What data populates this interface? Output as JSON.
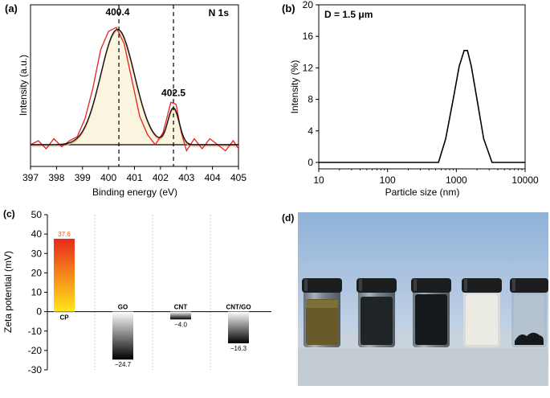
{
  "panels": {
    "a": {
      "label": "(a)"
    },
    "b": {
      "label": "(b)"
    },
    "c": {
      "label": "(c)"
    },
    "d": {
      "label": "(d)"
    }
  },
  "chart_data": [
    {
      "id": "xps",
      "type": "line",
      "title": "N 1s",
      "xlabel": "Binding energy (eV)",
      "ylabel": "Intensity (a.u.)",
      "xlim": [
        397,
        405
      ],
      "xticks": [
        397,
        398,
        399,
        400,
        401,
        402,
        403,
        404,
        405
      ],
      "ylim": [
        0,
        1
      ],
      "peaks": [
        {
          "label": "400.4",
          "center": 400.35,
          "height": 0.57,
          "width": 0.65
        },
        {
          "label": "402.5",
          "center": 402.5,
          "height": 0.18,
          "width": 0.22
        }
      ],
      "raw_series": {
        "name": "measured",
        "color": "#e8201e",
        "x": [
          397.0,
          397.3,
          397.6,
          397.9,
          398.2,
          398.5,
          398.8,
          399.1,
          399.4,
          399.7,
          400.0,
          400.3,
          400.6,
          400.9,
          401.2,
          401.5,
          401.8,
          402.1,
          402.4,
          402.6,
          402.8,
          403.0,
          403.3,
          403.6,
          403.9,
          404.2,
          404.5,
          404.8,
          405.0
        ],
        "y": [
          0.0,
          0.02,
          -0.02,
          0.03,
          -0.01,
          0.02,
          0.04,
          0.13,
          0.28,
          0.47,
          0.56,
          0.58,
          0.5,
          0.32,
          0.14,
          0.05,
          0.0,
          0.06,
          0.21,
          0.2,
          0.06,
          -0.03,
          0.03,
          -0.02,
          0.03,
          0.0,
          -0.03,
          0.02,
          -0.02
        ]
      },
      "fit_color": "#111111",
      "fill_color": "#fbf5df",
      "component_color": "#e8a878",
      "dashed_markers": [
        400.4,
        402.5
      ]
    },
    {
      "id": "dls",
      "type": "line",
      "annotation": "D = 1.5 μm",
      "xlabel": "Particle size (nm)",
      "ylabel": "Intensity (%)",
      "xscale": "log",
      "xlim": [
        10,
        10000
      ],
      "xticks": [
        10,
        100,
        1000,
        10000
      ],
      "ylim": [
        0,
        20
      ],
      "yticks": [
        0,
        4,
        8,
        12,
        16,
        20
      ],
      "series": [
        {
          "name": "distribution",
          "x": [
            10,
            550,
            700,
            900,
            1100,
            1300,
            1450,
            1650,
            2000,
            2500,
            3300,
            10000
          ],
          "y": [
            0,
            0,
            3,
            8,
            12.2,
            14.2,
            14.2,
            12.2,
            8,
            3,
            0,
            0
          ]
        }
      ]
    },
    {
      "id": "zeta",
      "type": "bar",
      "ylabel": "Zeta potential (mV)",
      "ylim": [
        -30,
        50
      ],
      "yticks": [
        -30,
        -20,
        -10,
        0,
        10,
        20,
        30,
        40,
        50
      ],
      "categories": [
        "CP",
        "GO",
        "CNT",
        "CNT/GO"
      ],
      "values": [
        37.6,
        -24.7,
        -4.0,
        -16.3
      ],
      "value_labels": [
        "37.6",
        "−24.7",
        "−4.0",
        "−16.3"
      ],
      "colors": {
        "positive_top": "#e8281c",
        "positive_bottom": "#ffe81a",
        "negative_top": "#ffffff",
        "negative_bottom": "#000000",
        "positive_label": "#e85a1c"
      }
    }
  ]
}
